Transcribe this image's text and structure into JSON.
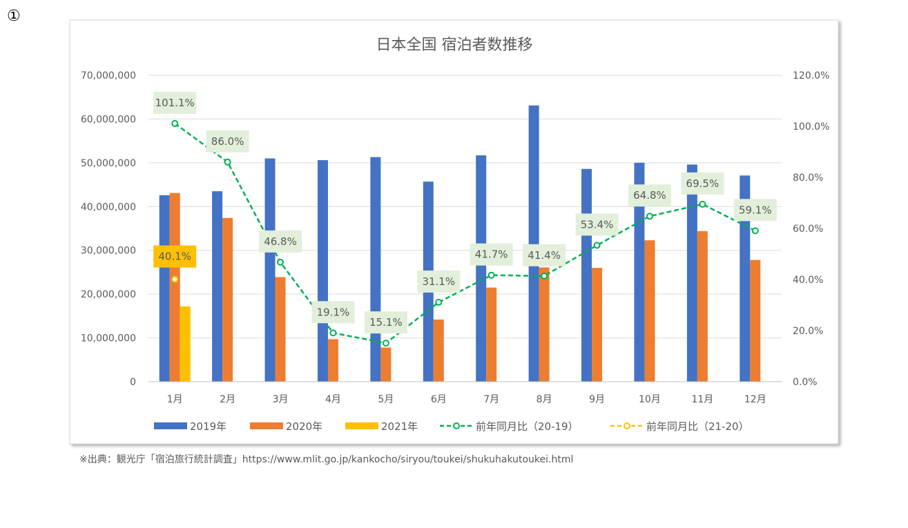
{
  "page_marker": "①",
  "source_note": "※出典：観光庁「宿泊旅行統計調査」https://www.mlit.go.jp/kankocho/siryou/toukei/shukuhakutoukei.html",
  "chart_data": {
    "type": "bar",
    "title": "日本全国 宿泊者数推移",
    "categories": [
      "1月",
      "2月",
      "3月",
      "4月",
      "5月",
      "6月",
      "7月",
      "8月",
      "9月",
      "10月",
      "11月",
      "12月"
    ],
    "series": [
      {
        "name": "2019年",
        "kind": "bar",
        "axis": "left",
        "color": "#4472C4",
        "values": [
          42600000,
          43500000,
          51000000,
          50600000,
          51300000,
          45700000,
          51700000,
          63100000,
          48600000,
          50000000,
          49600000,
          47100000
        ]
      },
      {
        "name": "2020年",
        "kind": "bar",
        "axis": "left",
        "color": "#ED7D31",
        "values": [
          43100000,
          37400000,
          23900000,
          9700000,
          7800000,
          14200000,
          21500000,
          26100000,
          26000000,
          32300000,
          34400000,
          27800000
        ]
      },
      {
        "name": "2021年",
        "kind": "bar",
        "axis": "left",
        "color": "#FFC000",
        "values": [
          17200000,
          null,
          null,
          null,
          null,
          null,
          null,
          null,
          null,
          null,
          null,
          null
        ]
      },
      {
        "name": "前年同月比（20-19）",
        "kind": "line",
        "axis": "right",
        "color": "#00B050",
        "values": [
          101.1,
          86.0,
          46.8,
          19.1,
          15.1,
          31.1,
          41.7,
          41.4,
          53.4,
          64.8,
          69.5,
          59.1
        ],
        "labels": [
          "101.1%",
          "86.0%",
          "46.8%",
          "19.1%",
          "15.1%",
          "31.1%",
          "41.7%",
          "41.4%",
          "53.4%",
          "64.8%",
          "69.5%",
          "59.1%"
        ]
      },
      {
        "name": "前年同月比（21-20）",
        "kind": "line",
        "axis": "right",
        "color": "#FFC000",
        "values": [
          40.1,
          null,
          null,
          null,
          null,
          null,
          null,
          null,
          null,
          null,
          null,
          null
        ],
        "labels": [
          "40.1%",
          null,
          null,
          null,
          null,
          null,
          null,
          null,
          null,
          null,
          null,
          null
        ]
      }
    ],
    "y_left": {
      "min": 0,
      "max": 70000000,
      "ticks": [
        "0",
        "10,000,000",
        "20,000,000",
        "30,000,000",
        "40,000,000",
        "50,000,000",
        "60,000,000",
        "70,000,000"
      ]
    },
    "y_right": {
      "min": 0,
      "max": 120,
      "ticks": [
        "0.0%",
        "20.0%",
        "40.0%",
        "60.0%",
        "80.0%",
        "100.0%",
        "120.0%"
      ]
    },
    "grid": true,
    "legend_position": "bottom"
  }
}
